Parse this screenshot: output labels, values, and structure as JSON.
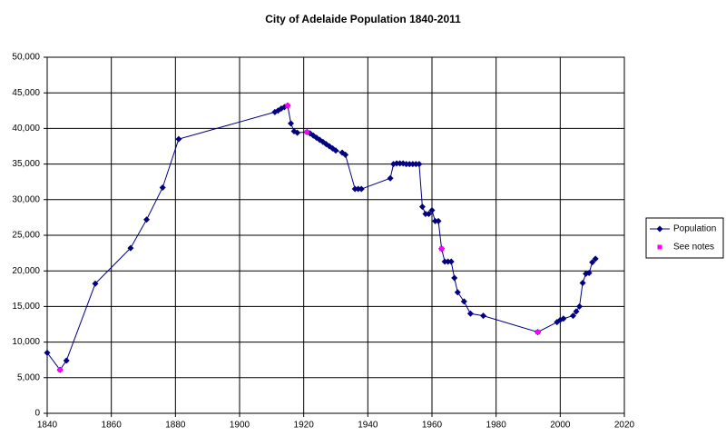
{
  "chart_data": {
    "type": "line",
    "title": "City of Adelaide Population 1840-2011",
    "xlim": [
      1840,
      2020
    ],
    "xticks": [
      1840,
      1860,
      1880,
      1900,
      1920,
      1940,
      1960,
      1980,
      2000,
      2020
    ],
    "ylim": [
      0,
      50000
    ],
    "yticks": [
      0,
      {
        "value": 5000,
        "label": "5,000"
      },
      {
        "value": 10000,
        "label": "10,000"
      },
      {
        "value": 15000,
        "label": "15,000"
      },
      {
        "value": 20000,
        "label": "20,000"
      },
      {
        "value": 25000,
        "label": "25,000"
      },
      {
        "value": 30000,
        "label": "30,000"
      },
      {
        "value": 35000,
        "label": "35,000"
      },
      {
        "value": 40000,
        "label": "40,000"
      },
      {
        "value": 45000,
        "label": "45,000"
      },
      {
        "value": 50000,
        "label": "50,000"
      }
    ],
    "grid": true,
    "legend": "right",
    "series": [
      {
        "name": "Population",
        "color": "#000080",
        "marker": "diamond",
        "line": true,
        "x": [
          1840,
          1844,
          1846,
          1855,
          1866,
          1871,
          1876,
          1881,
          1911,
          1912,
          1913,
          1914,
          1915,
          1916,
          1917,
          1918,
          1921,
          1922,
          1923,
          1924,
          1925,
          1926,
          1927,
          1928,
          1929,
          1930,
          1932,
          1933,
          1936,
          1937,
          1938,
          1947,
          1948,
          1949,
          1950,
          1951,
          1952,
          1953,
          1954,
          1955,
          1956,
          1957,
          1958,
          1959,
          1960,
          1961,
          1962,
          1963,
          1964,
          1965,
          1966,
          1967,
          1968,
          1970,
          1972,
          1976,
          1993,
          1999,
          2000,
          2001,
          2004,
          2005,
          2006,
          2007,
          2008,
          2009,
          2010,
          2011
        ],
        "values": [
          8500,
          6100,
          7400,
          18200,
          23200,
          27200,
          31700,
          38500,
          42300,
          42500,
          42800,
          43000,
          43200,
          40700,
          39600,
          39400,
          39500,
          39300,
          39000,
          38700,
          38400,
          38100,
          37800,
          37500,
          37200,
          36900,
          36600,
          36300,
          31500,
          31500,
          31500,
          33000,
          35000,
          35100,
          35100,
          35100,
          35000,
          35000,
          35000,
          35000,
          35000,
          29000,
          28000,
          28000,
          28500,
          27000,
          27000,
          23100,
          21300,
          21300,
          21300,
          19000,
          17000,
          15700,
          14000,
          13700,
          11400,
          12800,
          13100,
          13300,
          13700,
          14300,
          15000,
          18300,
          19600,
          19700,
          21200,
          21700
        ]
      },
      {
        "name": "See notes",
        "color": "#ff00ff",
        "marker": "square",
        "line": false,
        "x": [
          1844,
          1915,
          1921,
          1963,
          1993
        ],
        "values": [
          6100,
          43200,
          39500,
          23100,
          11400
        ]
      }
    ]
  }
}
